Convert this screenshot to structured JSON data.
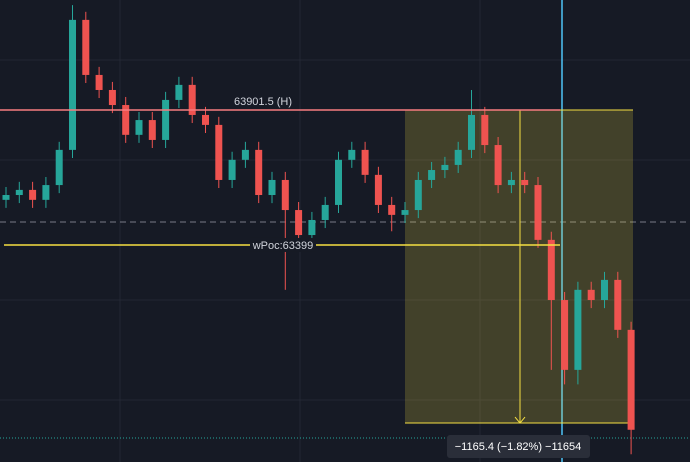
{
  "chart_data": {
    "type": "candlestick",
    "ylim": [
      62591,
      64311
    ],
    "up_color": "#26a69a",
    "down_color": "#ef5350",
    "open": [
      63567,
      63585,
      63604,
      63567,
      63622,
      63753,
      64237,
      64032,
      63976,
      63920,
      63809,
      63864,
      63790,
      63939,
      63995,
      63883,
      63846,
      63641,
      63716,
      63753,
      63585,
      63641,
      63529,
      63436,
      63492,
      63548,
      63716,
      63753,
      63660,
      63548,
      63511,
      63529,
      63641,
      63678,
      63697,
      63753,
      63883,
      63771,
      63622,
      63641,
      63622,
      63418,
      63194,
      62934,
      63232,
      63194,
      63269,
      63083
    ],
    "high": [
      63615,
      63634,
      63634,
      63652,
      63783,
      64292,
      64267,
      64062,
      64006,
      63950,
      63894,
      63894,
      63969,
      64025,
      64025,
      63913,
      63876,
      63746,
      63783,
      63783,
      63671,
      63671,
      63559,
      63522,
      63578,
      63746,
      63783,
      63783,
      63690,
      63578,
      63559,
      63671,
      63708,
      63727,
      63783,
      63976,
      63913,
      63801,
      63671,
      63671,
      63652,
      63448,
      63224,
      63262,
      63262,
      63299,
      63299,
      63113
    ],
    "low": [
      63537,
      63555,
      63537,
      63537,
      63592,
      63723,
      64002,
      63946,
      63890,
      63779,
      63779,
      63760,
      63760,
      63909,
      63853,
      63816,
      63611,
      63611,
      63686,
      63555,
      63555,
      63232,
      63406,
      63406,
      63462,
      63518,
      63686,
      63630,
      63518,
      63450,
      63481,
      63499,
      63611,
      63648,
      63667,
      63723,
      63741,
      63592,
      63592,
      63592,
      63388,
      62934,
      62880,
      62880,
      63164,
      63164,
      63053,
      62620
    ],
    "close": [
      63585,
      63604,
      63567,
      63622,
      63753,
      64237,
      64032,
      63976,
      63920,
      63809,
      63864,
      63790,
      63939,
      63995,
      63883,
      63846,
      63641,
      63716,
      63753,
      63585,
      63641,
      63529,
      63436,
      63492,
      63548,
      63716,
      63753,
      63660,
      63548,
      63511,
      63529,
      63641,
      63678,
      63697,
      63753,
      63883,
      63771,
      63622,
      63641,
      63622,
      63418,
      63194,
      62934,
      63232,
      63194,
      63269,
      63083,
      62711
    ],
    "high_level": {
      "value": 63901.5,
      "label": "63901.5 (H)",
      "color": "#f77c80"
    },
    "wpoc_level": {
      "value": 63399,
      "label": "wPoc:63399",
      "color": "#f5e042"
    },
    "measure": {
      "from": 63901.5,
      "change": -1165.4,
      "label": "−1165.4 (−1.82%) −11654",
      "color": "#f5e042"
    }
  }
}
